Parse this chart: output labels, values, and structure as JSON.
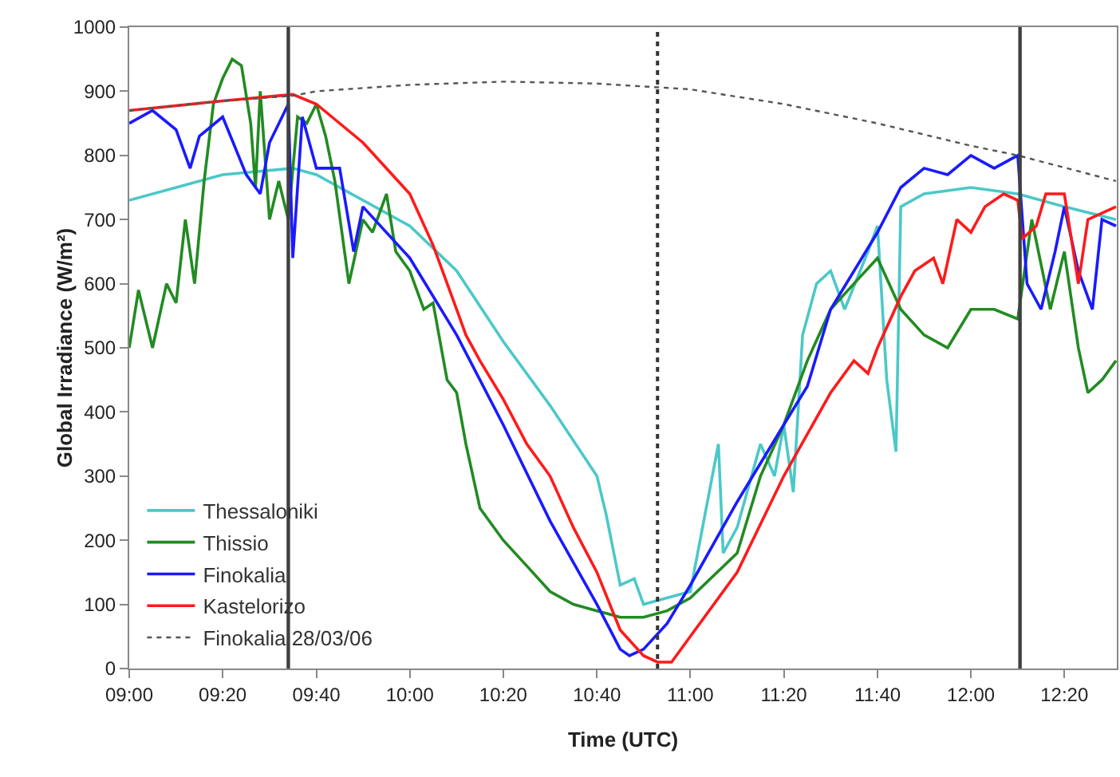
{
  "chart_data": {
    "type": "line",
    "xlabel": "Time (UTC)",
    "ylabel": "Global Irradiance (W/m²)",
    "xlim": [
      9,
      12.52
    ],
    "xticks": [
      {
        "value": 9,
        "label": "09:00"
      },
      {
        "value": 9.333,
        "label": "09:20"
      },
      {
        "value": 9.667,
        "label": "09:40"
      },
      {
        "value": 10,
        "label": "10:00"
      },
      {
        "value": 10.333,
        "label": "10:20"
      },
      {
        "value": 10.667,
        "label": "10:40"
      },
      {
        "value": 11,
        "label": "11:00"
      },
      {
        "value": 11.333,
        "label": "11:20"
      },
      {
        "value": 11.667,
        "label": "11:40"
      },
      {
        "value": 12,
        "label": "12:00"
      },
      {
        "value": 12.333,
        "label": "12:20"
      }
    ],
    "ylim": [
      0,
      1000
    ],
    "yticks": [
      0,
      100,
      200,
      300,
      400,
      500,
      600,
      700,
      800,
      900,
      1000
    ],
    "grid": false,
    "legend": "bottom left",
    "ref_lines": [
      {
        "axis": "x",
        "value": 9.567,
        "color": "#404040",
        "line_style": "solid"
      },
      {
        "axis": "x",
        "value": 10.883,
        "color": "#333333",
        "line_style": "dotted"
      },
      {
        "axis": "x",
        "value": 12.175,
        "color": "#404040",
        "line_style": "solid"
      }
    ],
    "series": [
      {
        "name": "Thessaloniki",
        "color": "#4cc8c8",
        "x": [
          9,
          9.333,
          9.583,
          9.667,
          10,
          10.167,
          10.333,
          10.5,
          10.667,
          10.7,
          10.75,
          10.8,
          10.833,
          10.917,
          11,
          11.1,
          11.117,
          11.167,
          11.25,
          11.3,
          11.333,
          11.367,
          11.4,
          11.45,
          11.5,
          11.55,
          11.633,
          11.667,
          11.7,
          11.733,
          11.75,
          11.833,
          12,
          12.167,
          12.333,
          12.517
        ],
        "values": [
          730,
          770,
          780,
          770,
          690,
          620,
          510,
          410,
          300,
          240,
          130,
          140,
          100,
          110,
          120,
          350,
          180,
          220,
          350,
          300,
          380,
          275,
          520,
          600,
          620,
          560,
          650,
          690,
          450,
          338,
          720,
          740,
          750,
          740,
          720,
          700
        ]
      },
      {
        "name": "Thissio",
        "color": "#228b22",
        "x": [
          9,
          9.033,
          9.083,
          9.133,
          9.167,
          9.2,
          9.233,
          9.267,
          9.3,
          9.333,
          9.367,
          9.4,
          9.433,
          9.45,
          9.467,
          9.5,
          9.533,
          9.567,
          9.6,
          9.633,
          9.667,
          9.7,
          9.733,
          9.783,
          9.833,
          9.867,
          9.917,
          9.95,
          10,
          10.05,
          10.083,
          10.133,
          10.167,
          10.2,
          10.25,
          10.333,
          10.417,
          10.5,
          10.583,
          10.667,
          10.75,
          10.833,
          10.917,
          11,
          11.167,
          11.25,
          11.333,
          11.417,
          11.5,
          11.583,
          11.667,
          11.75,
          11.833,
          11.917,
          12,
          12.083,
          12.167,
          12.217,
          12.283,
          12.333,
          12.383,
          12.417,
          12.467,
          12.517
        ],
        "values": [
          500,
          590,
          500,
          600,
          570,
          700,
          600,
          760,
          880,
          920,
          950,
          940,
          850,
          750,
          900,
          700,
          760,
          700,
          860,
          850,
          880,
          830,
          760,
          600,
          700,
          680,
          740,
          650,
          620,
          560,
          570,
          450,
          430,
          350,
          250,
          200,
          160,
          120,
          100,
          90,
          80,
          80,
          90,
          110,
          180,
          300,
          380,
          480,
          560,
          600,
          640,
          560,
          520,
          500,
          560,
          560,
          545,
          700,
          560,
          650,
          500,
          430,
          450,
          480
        ]
      },
      {
        "name": "Finokalia",
        "color": "#1a1aff",
        "x": [
          9,
          9.083,
          9.167,
          9.217,
          9.25,
          9.333,
          9.417,
          9.467,
          9.5,
          9.567,
          9.583,
          9.617,
          9.667,
          9.75,
          9.8,
          9.833,
          10,
          10.167,
          10.333,
          10.5,
          10.667,
          10.75,
          10.783,
          10.833,
          10.917,
          11,
          11.167,
          11.333,
          11.417,
          11.5,
          11.667,
          11.75,
          11.833,
          11.917,
          12,
          12.083,
          12.167,
          12.2,
          12.25,
          12.3,
          12.333,
          12.383,
          12.433,
          12.467,
          12.517
        ],
        "values": [
          850,
          870,
          840,
          780,
          830,
          860,
          770,
          740,
          820,
          880,
          640,
          860,
          780,
          780,
          650,
          720,
          640,
          520,
          380,
          230,
          100,
          30,
          20,
          30,
          70,
          130,
          260,
          380,
          440,
          560,
          680,
          750,
          780,
          770,
          800,
          780,
          800,
          600,
          560,
          650,
          720,
          620,
          560,
          700,
          690
        ]
      },
      {
        "name": "Kastelorizo",
        "color": "#ff1a1a",
        "x": [
          9,
          9.333,
          9.583,
          9.667,
          9.833,
          10,
          10.083,
          10.167,
          10.2,
          10.25,
          10.333,
          10.417,
          10.5,
          10.583,
          10.667,
          10.75,
          10.833,
          10.883,
          10.933,
          11,
          11.167,
          11.333,
          11.5,
          11.583,
          11.633,
          11.667,
          11.75,
          11.8,
          11.867,
          11.9,
          11.95,
          12,
          12.05,
          12.117,
          12.167,
          12.183,
          12.233,
          12.267,
          12.333,
          12.383,
          12.417,
          12.517
        ],
        "values": [
          870,
          885,
          895,
          880,
          820,
          740,
          660,
          560,
          520,
          480,
          420,
          350,
          300,
          220,
          150,
          60,
          20,
          10,
          10,
          50,
          150,
          300,
          430,
          480,
          460,
          500,
          580,
          620,
          640,
          600,
          700,
          680,
          720,
          740,
          730,
          670,
          690,
          740,
          740,
          600,
          700,
          720
        ]
      },
      {
        "name": "Finokalia 28/03/06",
        "color": "#555555",
        "line_style": "dotted",
        "x": [
          9,
          9.333,
          9.583,
          9.667,
          10,
          10.333,
          10.667,
          11,
          11.333,
          11.667,
          12,
          12.167,
          12.517
        ],
        "values": [
          870,
          885,
          893,
          900,
          910,
          915,
          912,
          903,
          880,
          850,
          815,
          800,
          760
        ]
      }
    ]
  }
}
